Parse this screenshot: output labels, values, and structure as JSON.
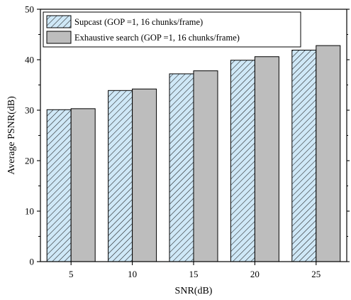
{
  "chart_data": {
    "type": "bar",
    "categories": [
      "5",
      "10",
      "15",
      "20",
      "25"
    ],
    "series": [
      {
        "name": "Supcast  (GOP =1, 16 chunks/frame)",
        "values": [
          30.1,
          33.9,
          37.2,
          39.9,
          41.9
        ],
        "color": "#cfe8f7",
        "pattern": "hatch"
      },
      {
        "name": "Exhaustive search  (GOP =1, 16 chunks/frame)",
        "values": [
          30.3,
          34.2,
          37.8,
          40.6,
          42.8
        ],
        "color": "#bdbdbd",
        "pattern": "solid"
      }
    ],
    "xlabel": "SNR(dB)",
    "ylabel": "Average PSNR(dB)",
    "ylim": [
      0,
      50
    ],
    "yticks": [
      "0",
      "10",
      "20",
      "30",
      "40",
      "50"
    ],
    "grid": false,
    "legend_position": "top-left"
  }
}
